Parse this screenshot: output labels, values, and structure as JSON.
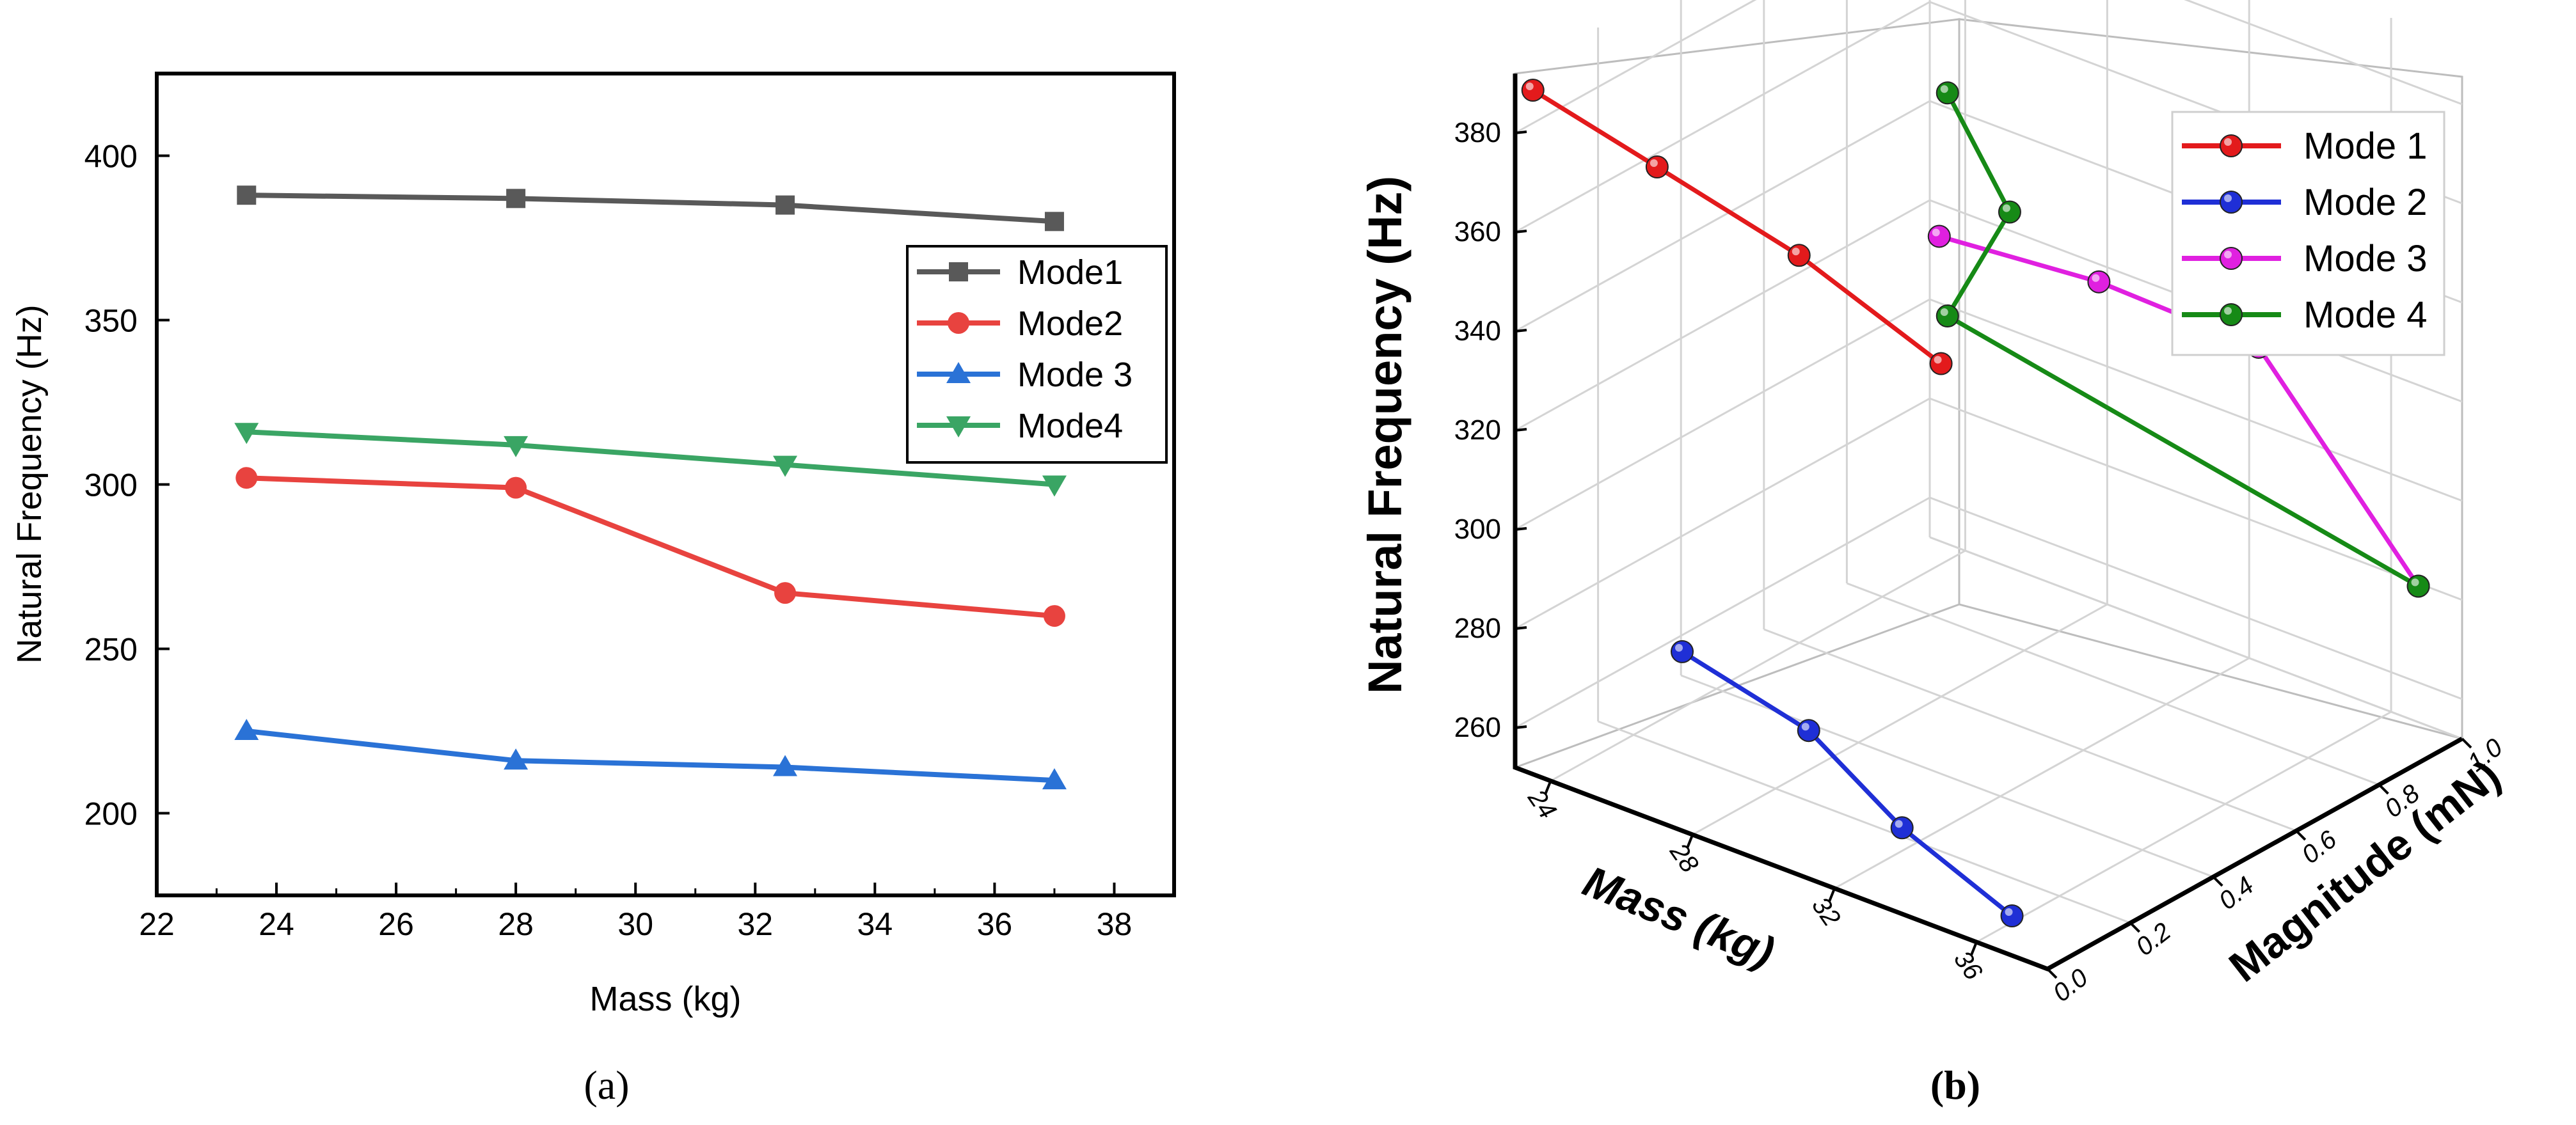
{
  "chart_data": [
    {
      "panel": "a",
      "type": "line",
      "xlabel": "Mass (kg)",
      "ylabel": "Natural Frequency (Hz)",
      "xlim": [
        22,
        39
      ],
      "ylim": [
        175,
        425
      ],
      "xticks": [
        22,
        24,
        26,
        28,
        30,
        32,
        34,
        36,
        38
      ],
      "yticks": [
        200,
        250,
        300,
        350,
        400
      ],
      "x": [
        23.5,
        28,
        32.5,
        37
      ],
      "legend_position": "right",
      "series": [
        {
          "name": "Mode1",
          "marker": "square",
          "color": "#595959",
          "values": [
            388,
            387,
            385,
            380
          ]
        },
        {
          "name": "Mode2",
          "marker": "circle",
          "color": "#e8433f",
          "values": [
            302,
            299,
            267,
            260
          ]
        },
        {
          "name": "Mode 3",
          "marker": "triangle-up",
          "color": "#2a72d6",
          "values": [
            225,
            216,
            214,
            210
          ]
        },
        {
          "name": "Mode4",
          "marker": "triangle-down",
          "color": "#3aa564",
          "values": [
            316,
            312,
            306,
            300
          ]
        }
      ],
      "caption": "(a)"
    },
    {
      "panel": "b",
      "type": "line3d",
      "xlabel": "Mass (kg)",
      "ylabel": "Magnitude (mN)",
      "zlabel": "Natural Frequency (Hz)",
      "xlim": [
        23,
        38
      ],
      "ylim": [
        0,
        1
      ],
      "zlim": [
        252,
        392
      ],
      "xticks": [
        24,
        28,
        32,
        36
      ],
      "yticks": [
        "0.0",
        "0.2",
        "0.4",
        "0.6",
        "0.8",
        "1.0"
      ],
      "zticks": [
        260,
        280,
        300,
        320,
        340,
        360,
        380
      ],
      "legend_position": "top-right",
      "series": [
        {
          "name": "Mode 1",
          "color": "#e31a1c",
          "points": [
            [
              23.5,
              0,
              390
            ],
            [
              27,
              0,
              384
            ],
            [
              31,
              0,
              377
            ],
            [
              35,
              0,
              366
            ]
          ]
        },
        {
          "name": "Mode 2",
          "color": "#1f2fd6",
          "points": [
            [
              23.5,
              0.36,
              260
            ],
            [
              28,
              0.28,
              260
            ],
            [
              32.5,
              0.12,
              260
            ],
            [
              37,
              0.0,
              260
            ]
          ]
        },
        {
          "name": "Mode 3",
          "color": "#e020e0",
          "points": [
            [
              23.5,
              0.98,
              315
            ],
            [
              28,
              0.98,
              318
            ],
            [
              32.5,
              0.98,
              317
            ],
            [
              37,
              0.98,
              281
            ]
          ]
        },
        {
          "name": "Mode 4",
          "color": "#168a16",
          "points": [
            [
              23.5,
              1.0,
              343
            ],
            [
              23.5,
              1.15,
              312
            ],
            [
              23.5,
              1.0,
              298
            ],
            [
              37,
              0.98,
              281
            ]
          ]
        }
      ],
      "caption": "(b)"
    }
  ]
}
